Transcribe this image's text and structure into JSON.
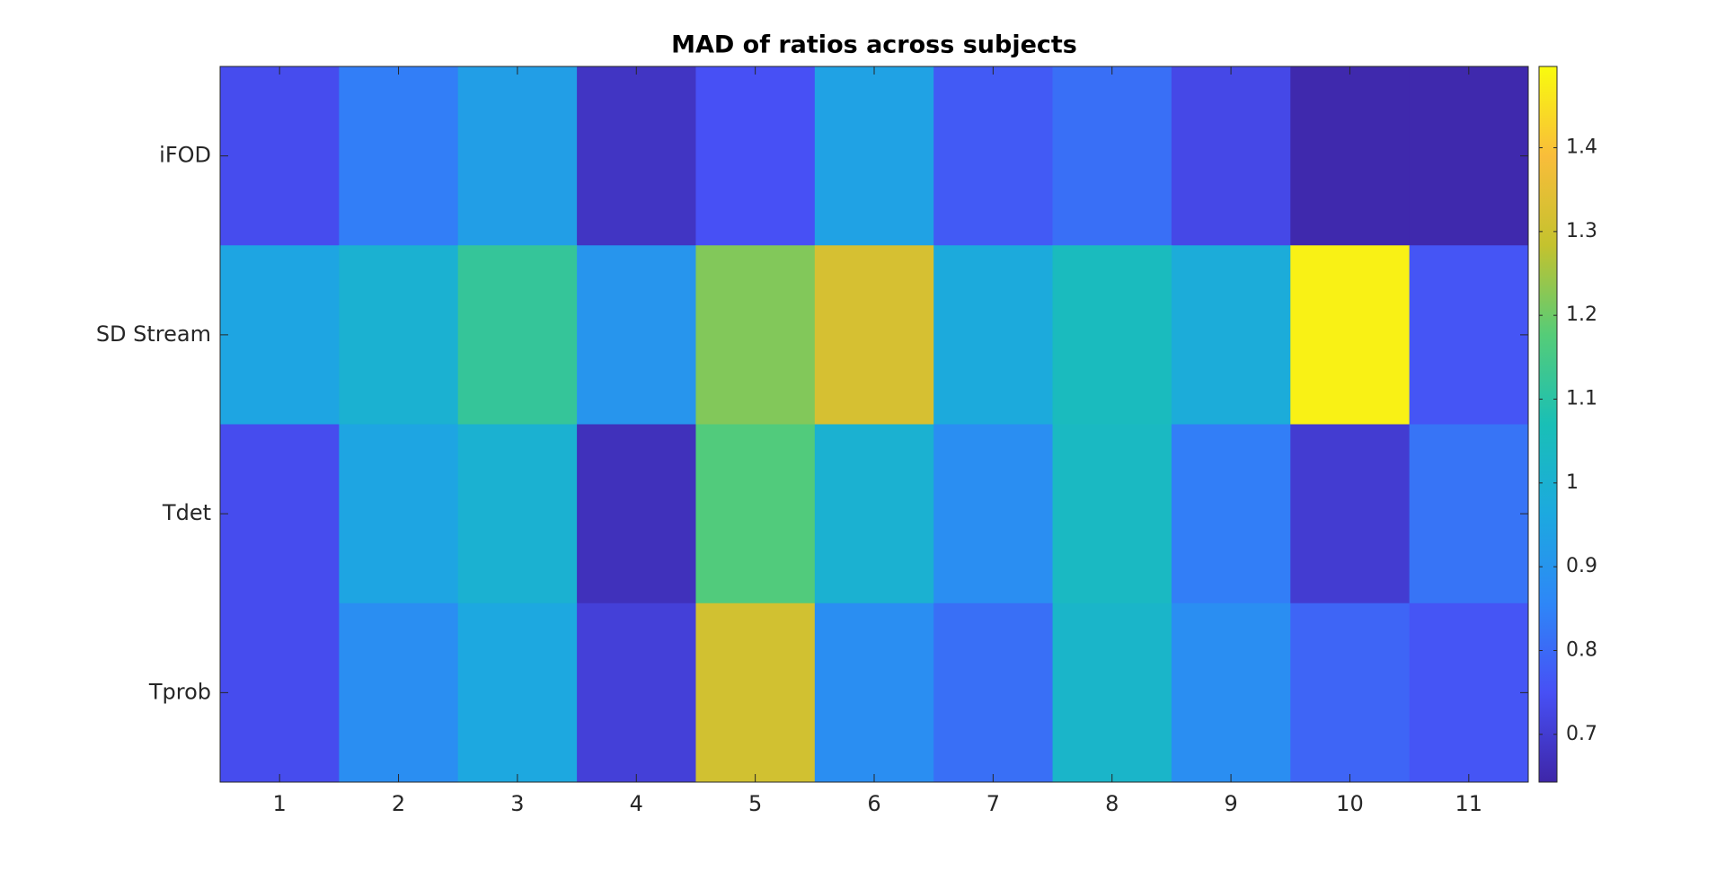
{
  "chart_data": {
    "type": "heatmap",
    "title": "MAD of ratios across subjects",
    "x": [
      1,
      2,
      3,
      4,
      5,
      6,
      7,
      8,
      9,
      10,
      11
    ],
    "xticks": [
      1,
      2,
      3,
      4,
      5,
      6,
      7,
      8,
      9,
      10,
      11
    ],
    "series": [
      {
        "name": "iFOD",
        "values": [
          0.74,
          0.84,
          0.93,
          0.68,
          0.75,
          0.94,
          0.77,
          0.81,
          0.73,
          0.65,
          0.65
        ]
      },
      {
        "name": "SD Stream",
        "values": [
          0.95,
          1.0,
          1.12,
          0.9,
          1.22,
          1.32,
          0.97,
          1.05,
          0.98,
          1.48,
          0.76
        ]
      },
      {
        "name": "Tdet",
        "values": [
          0.74,
          0.95,
          1.0,
          0.67,
          1.17,
          1.0,
          0.88,
          1.04,
          0.84,
          0.7,
          0.82
        ]
      },
      {
        "name": "Tprob",
        "values": [
          0.74,
          0.88,
          0.96,
          0.71,
          1.31,
          0.88,
          0.81,
          1.02,
          0.88,
          0.79,
          0.76
        ]
      }
    ],
    "clim": [
      0.643,
      1.497
    ],
    "cticks": [
      0.7,
      0.8,
      0.9,
      1,
      1.1,
      1.2,
      1.3,
      1.4
    ],
    "colormap": [
      "#3e26a8",
      "#4750f5",
      "#2e87f7",
      "#1ca9df",
      "#19bfb6",
      "#55cc78",
      "#c4c22e",
      "#f9bd3a",
      "#f9fb0e"
    ]
  }
}
